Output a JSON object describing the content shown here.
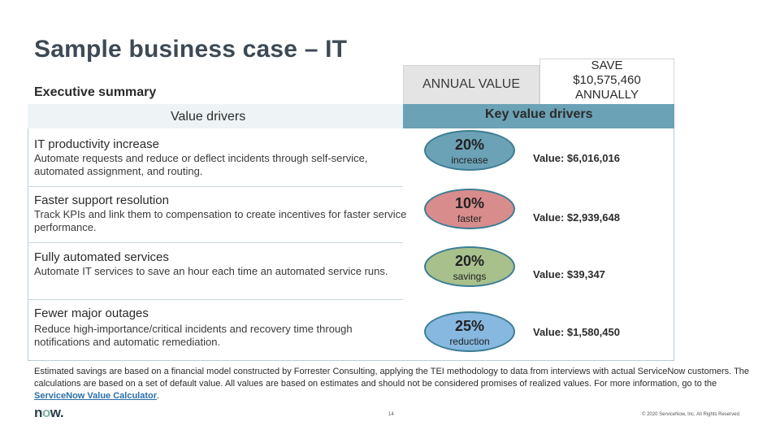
{
  "title": "Sample business case – IT",
  "executive_summary": "Executive summary",
  "annual_value": {
    "label": "ANNUAL VALUE",
    "save_line1": "SAVE",
    "save_amount": "$10,575,460",
    "save_line3": "ANNUALLY"
  },
  "header": {
    "value_drivers": "Value drivers",
    "key_value_drivers": "Key value drivers"
  },
  "drivers": [
    {
      "title": "IT productivity increase",
      "description": "Automate requests and reduce or deflect incidents through self-service, automated assignment, and routing.",
      "percent": "20%",
      "unit": "increase",
      "value": "Value: $6,016,016",
      "color": "#6ba2b5"
    },
    {
      "title": "Faster support resolution",
      "description": "Track KPIs and link them to compensation to create incentives for faster service performance.",
      "percent": "10%",
      "unit": "faster",
      "value": "Value: $2,939,648",
      "color": "#d88c8c"
    },
    {
      "title": "Fully automated services",
      "description": "Automate IT services to save an hour each time an automated service runs.",
      "percent": "20%",
      "unit": "savings",
      "value": "Value: $39,347",
      "color": "#a7c08c"
    },
    {
      "title": "Fewer major outages",
      "description": "Reduce high-importance/critical incidents and recovery time through notifications and automatic remediation.",
      "percent": "25%",
      "unit": "reduction",
      "value": "Value: $1,580,450",
      "color": "#86b8e0"
    }
  ],
  "footnote": {
    "text": "Estimated savings are based on a financial model constructed by Forrester Consulting, applying the TEI methodology to data from interviews with actual ServiceNow customers. The calculations are based on a set of default value. All values are based on estimates and should not be considered promises of realized values. For more information, go to the ",
    "link": "ServiceNow Value Calculator",
    "end": "."
  },
  "footer": {
    "logo_n": "n",
    "logo_o": "o",
    "logo_w": "w.",
    "page": "14",
    "copyright": "© 2020 ServiceNow, Inc. All Rights Reserved."
  }
}
